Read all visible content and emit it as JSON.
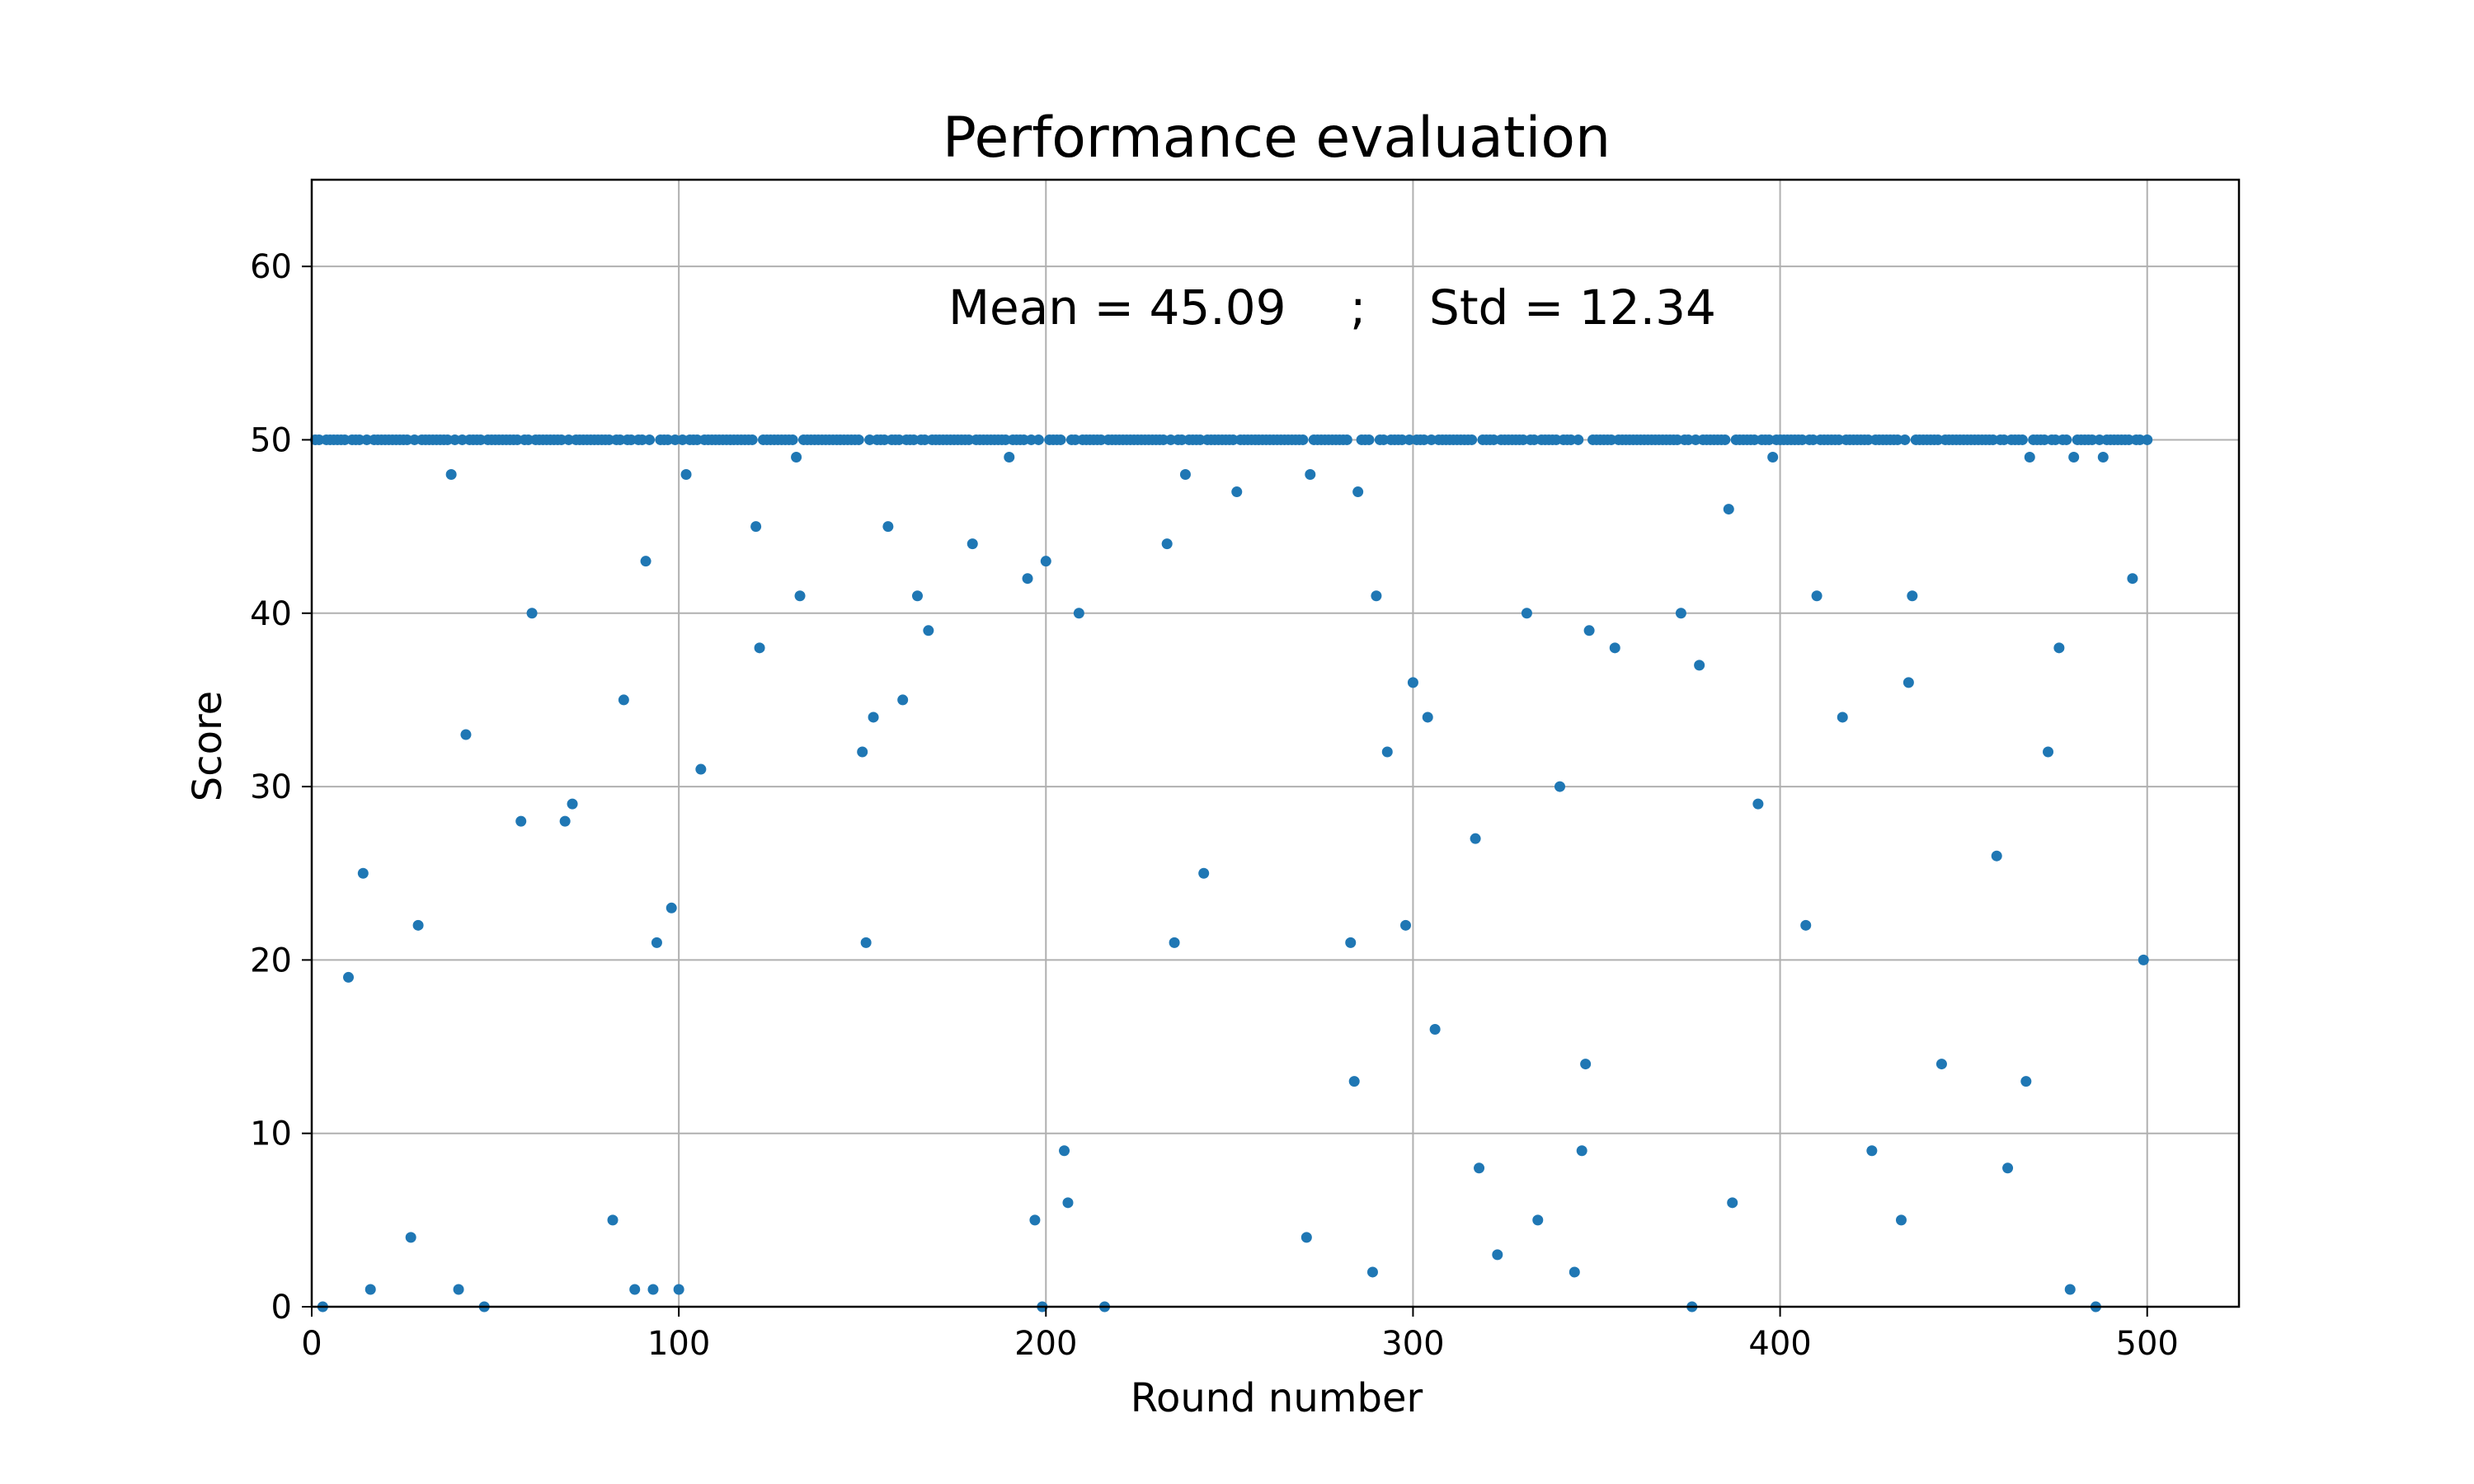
{
  "chart_data": {
    "type": "scatter",
    "title": "Performance evaluation",
    "xlabel": "Round number",
    "ylabel": "Score",
    "xlim": [
      0,
      525
    ],
    "ylim": [
      0,
      65
    ],
    "xticks": [
      0,
      100,
      200,
      300,
      400,
      500
    ],
    "yticks": [
      0,
      10,
      20,
      30,
      40,
      50,
      60
    ],
    "grid": true,
    "annotation": {
      "mean_text": "Mean = 45.09",
      "separator": ";",
      "std_text": "Std = 12.34"
    },
    "color": "#1f77b4",
    "baseline_value": 50,
    "baseline_x_range": [
      1,
      500
    ],
    "outliers": [
      [
        3,
        0
      ],
      [
        10,
        19
      ],
      [
        14,
        25
      ],
      [
        16,
        1
      ],
      [
        27,
        4
      ],
      [
        29,
        22
      ],
      [
        38,
        48
      ],
      [
        40,
        1
      ],
      [
        42,
        33
      ],
      [
        47,
        0
      ],
      [
        57,
        28
      ],
      [
        60,
        40
      ],
      [
        69,
        28
      ],
      [
        71,
        29
      ],
      [
        82,
        5
      ],
      [
        85,
        35
      ],
      [
        88,
        1
      ],
      [
        91,
        43
      ],
      [
        93,
        1
      ],
      [
        94,
        21
      ],
      [
        98,
        23
      ],
      [
        100,
        1
      ],
      [
        102,
        48
      ],
      [
        106,
        31
      ],
      [
        121,
        45
      ],
      [
        122,
        38
      ],
      [
        132,
        49
      ],
      [
        133,
        41
      ],
      [
        150,
        32
      ],
      [
        151,
        21
      ],
      [
        153,
        34
      ],
      [
        157,
        45
      ],
      [
        161,
        35
      ],
      [
        165,
        41
      ],
      [
        168,
        39
      ],
      [
        180,
        44
      ],
      [
        190,
        49
      ],
      [
        195,
        42
      ],
      [
        197,
        5
      ],
      [
        199,
        0
      ],
      [
        200,
        43
      ],
      [
        205,
        9
      ],
      [
        206,
        6
      ],
      [
        209,
        40
      ],
      [
        216,
        0
      ],
      [
        233,
        44
      ],
      [
        235,
        21
      ],
      [
        238,
        48
      ],
      [
        243,
        25
      ],
      [
        252,
        47
      ],
      [
        271,
        4
      ],
      [
        272,
        48
      ],
      [
        283,
        21
      ],
      [
        284,
        13
      ],
      [
        285,
        47
      ],
      [
        289,
        2
      ],
      [
        290,
        41
      ],
      [
        293,
        32
      ],
      [
        298,
        22
      ],
      [
        300,
        36
      ],
      [
        304,
        34
      ],
      [
        306,
        16
      ],
      [
        317,
        27
      ],
      [
        318,
        8
      ],
      [
        323,
        3
      ],
      [
        331,
        40
      ],
      [
        334,
        5
      ],
      [
        340,
        30
      ],
      [
        344,
        2
      ],
      [
        346,
        9
      ],
      [
        347,
        14
      ],
      [
        348,
        39
      ],
      [
        355,
        38
      ],
      [
        373,
        40
      ],
      [
        376,
        0
      ],
      [
        378,
        37
      ],
      [
        386,
        46
      ],
      [
        387,
        6
      ],
      [
        394,
        29
      ],
      [
        398,
        49
      ],
      [
        407,
        22
      ],
      [
        410,
        41
      ],
      [
        417,
        34
      ],
      [
        425,
        9
      ],
      [
        433,
        5
      ],
      [
        435,
        36
      ],
      [
        436,
        41
      ],
      [
        444,
        14
      ],
      [
        459,
        26
      ],
      [
        462,
        8
      ],
      [
        467,
        13
      ],
      [
        468,
        49
      ],
      [
        473,
        32
      ],
      [
        476,
        38
      ],
      [
        479,
        1
      ],
      [
        480,
        49
      ],
      [
        486,
        0
      ],
      [
        488,
        49
      ],
      [
        496,
        42
      ],
      [
        499,
        20
      ]
    ]
  }
}
